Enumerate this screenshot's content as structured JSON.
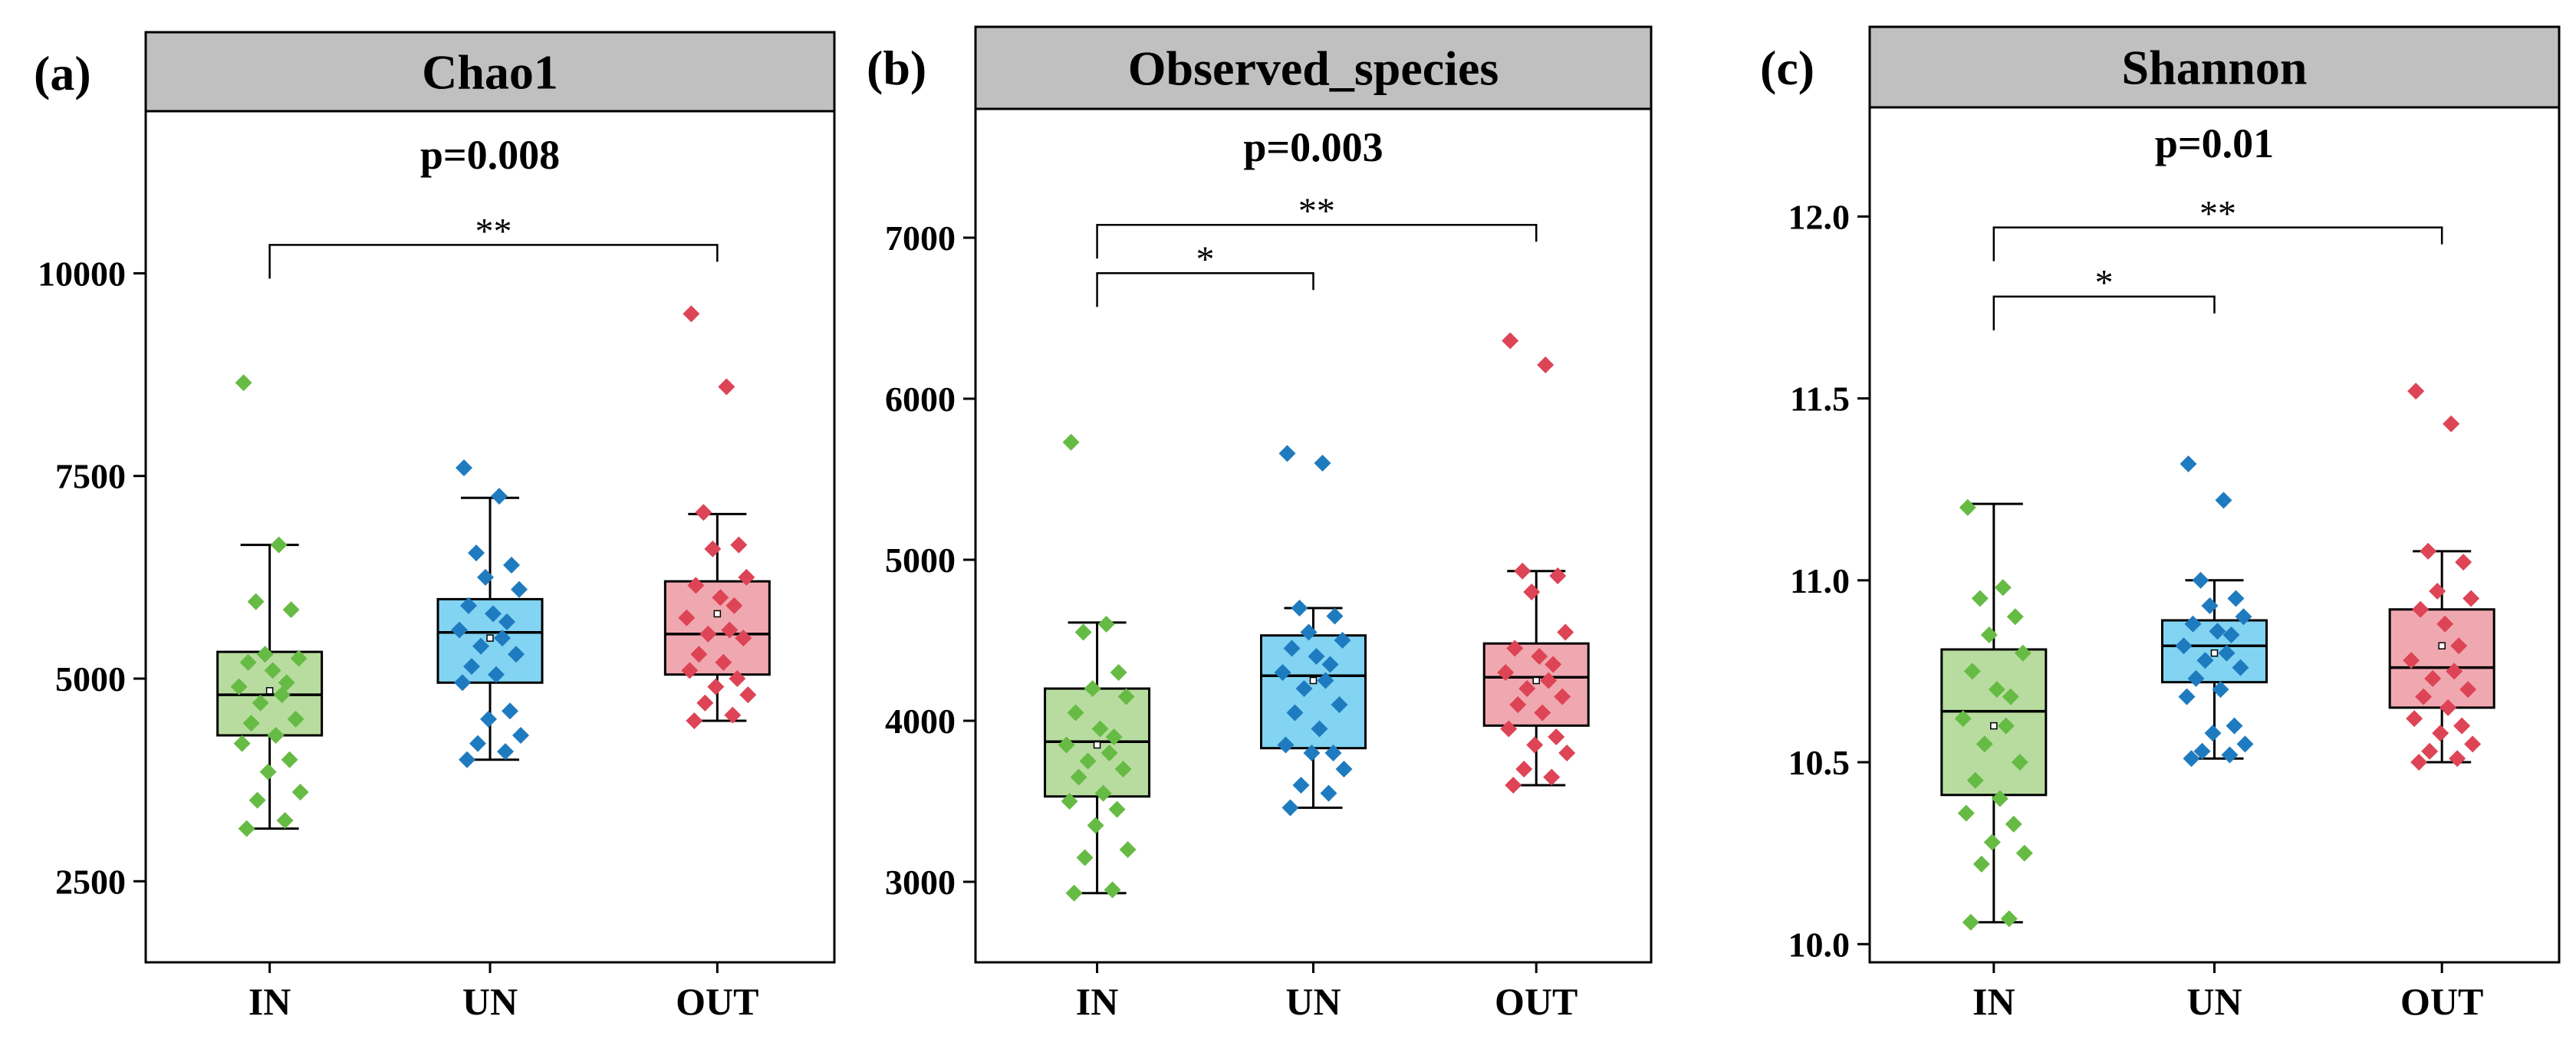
{
  "chart_data": [
    {
      "type": "box",
      "panel_label": "(a)",
      "title": "Chao1",
      "pvalue": "p=0.008",
      "ylim": [
        1500,
        12000
      ],
      "yticks": [
        2500,
        5000,
        7500,
        10000
      ],
      "yticklabels": [
        "2500",
        "5000",
        "7500",
        "10000"
      ],
      "categories": [
        "IN",
        "UN",
        "OUT"
      ],
      "groups": [
        {
          "name": "IN",
          "color": "#66bb44",
          "fill": "#b8dca0",
          "stats": {
            "min": 3150,
            "q1": 4300,
            "median": 4800,
            "q3": 5330,
            "max": 6650,
            "mean": 4850
          },
          "points": [
            8650,
            6650,
            5950,
            5850,
            5300,
            5250,
            5200,
            5100,
            4950,
            4900,
            4800,
            4700,
            4500,
            4450,
            4300,
            4200,
            4000,
            3850,
            3600,
            3500,
            3250,
            3150
          ]
        },
        {
          "name": "UN",
          "color": "#1f7bbf",
          "fill": "#82d4f2",
          "stats": {
            "min": 4000,
            "q1": 4950,
            "median": 5570,
            "q3": 5980,
            "max": 7230,
            "mean": 5500
          },
          "points": [
            7600,
            7250,
            6550,
            6400,
            6250,
            6100,
            5900,
            5800,
            5700,
            5600,
            5500,
            5400,
            5300,
            5150,
            5050,
            4950,
            4600,
            4500,
            4300,
            4200,
            4100,
            4000
          ]
        },
        {
          "name": "OUT",
          "color": "#dd4455",
          "fill": "#f0a8b0",
          "stats": {
            "min": 4480,
            "q1": 5050,
            "median": 5550,
            "q3": 6200,
            "max": 7030,
            "mean": 5800
          },
          "points": [
            9500,
            8600,
            7050,
            6650,
            6600,
            6250,
            6150,
            6000,
            5900,
            5750,
            5600,
            5550,
            5500,
            5300,
            5200,
            5100,
            5000,
            4900,
            4800,
            4700,
            4550,
            4480
          ]
        }
      ],
      "comparisons": [
        {
          "from": "IN",
          "to": "OUT",
          "label": "**",
          "y": 10350
        }
      ]
    },
    {
      "type": "box",
      "panel_label": "(b)",
      "title": "Observed_species",
      "pvalue": "p=0.003",
      "ylim": [
        2500,
        7800
      ],
      "yticks": [
        3000,
        4000,
        5000,
        6000,
        7000
      ],
      "yticklabels": [
        "3000",
        "4000",
        "5000",
        "6000",
        "7000"
      ],
      "categories": [
        "IN",
        "UN",
        "OUT"
      ],
      "groups": [
        {
          "name": "IN",
          "color": "#66bb44",
          "fill": "#b8dca0",
          "stats": {
            "min": 2930,
            "q1": 3530,
            "median": 3870,
            "q3": 4200,
            "max": 4610,
            "mean": 3850
          },
          "points": [
            5730,
            4600,
            4550,
            4300,
            4200,
            4150,
            4050,
            3950,
            3900,
            3850,
            3800,
            3750,
            3700,
            3650,
            3550,
            3500,
            3450,
            3350,
            3200,
            3150,
            2950,
            2930
          ]
        },
        {
          "name": "UN",
          "color": "#1f7bbf",
          "fill": "#82d4f2",
          "stats": {
            "min": 3460,
            "q1": 3830,
            "median": 4280,
            "q3": 4530,
            "max": 4700,
            "mean": 4250
          },
          "points": [
            5660,
            5600,
            4700,
            4650,
            4550,
            4500,
            4450,
            4400,
            4350,
            4300,
            4250,
            4200,
            4100,
            4050,
            3950,
            3850,
            3800,
            3800,
            3700,
            3600,
            3550,
            3460
          ]
        },
        {
          "name": "OUT",
          "color": "#dd4455",
          "fill": "#f0a8b0",
          "stats": {
            "min": 3600,
            "q1": 3970,
            "median": 4270,
            "q3": 4480,
            "max": 4930,
            "mean": 4250
          },
          "points": [
            6360,
            6210,
            4930,
            4900,
            4800,
            4550,
            4450,
            4400,
            4350,
            4300,
            4250,
            4200,
            4150,
            4100,
            4050,
            3950,
            3900,
            3850,
            3800,
            3700,
            3650,
            3600
          ]
        }
      ],
      "comparisons": [
        {
          "from": "IN",
          "to": "UN",
          "label": "*",
          "y": 6780
        },
        {
          "from": "IN",
          "to": "OUT",
          "label": "**",
          "y": 7080
        }
      ]
    },
    {
      "type": "box",
      "panel_label": "(c)",
      "title": "Shannon",
      "pvalue": "p=0.01",
      "ylim": [
        9.95,
        12.3
      ],
      "yticks": [
        10.0,
        10.5,
        11.0,
        11.5,
        12.0
      ],
      "yticklabels": [
        "10.0",
        "10.5",
        "11.0",
        "11.5",
        "12.0"
      ],
      "categories": [
        "IN",
        "UN",
        "OUT"
      ],
      "groups": [
        {
          "name": "IN",
          "color": "#66bb44",
          "fill": "#b8dca0",
          "stats": {
            "min": 10.06,
            "q1": 10.41,
            "median": 10.64,
            "q3": 10.81,
            "max": 11.21,
            "mean": 10.6
          },
          "points": [
            11.2,
            10.98,
            10.95,
            10.9,
            10.85,
            10.8,
            10.75,
            10.7,
            10.68,
            10.62,
            10.6,
            10.55,
            10.5,
            10.45,
            10.4,
            10.36,
            10.33,
            10.28,
            10.25,
            10.22,
            10.07,
            10.06
          ]
        },
        {
          "name": "UN",
          "color": "#1f7bbf",
          "fill": "#82d4f2",
          "stats": {
            "min": 10.51,
            "q1": 10.72,
            "median": 10.82,
            "q3": 10.89,
            "max": 11.0,
            "mean": 10.8
          },
          "points": [
            11.32,
            11.22,
            11.0,
            10.95,
            10.93,
            10.9,
            10.88,
            10.86,
            10.85,
            10.82,
            10.8,
            10.78,
            10.76,
            10.73,
            10.7,
            10.68,
            10.6,
            10.58,
            10.55,
            10.53,
            10.52,
            10.51
          ]
        },
        {
          "name": "OUT",
          "color": "#dd4455",
          "fill": "#f0a8b0",
          "stats": {
            "min": 10.5,
            "q1": 10.65,
            "median": 10.76,
            "q3": 10.92,
            "max": 11.08,
            "mean": 10.82
          },
          "points": [
            11.52,
            11.43,
            11.08,
            11.05,
            10.97,
            10.95,
            10.92,
            10.88,
            10.82,
            10.78,
            10.75,
            10.73,
            10.7,
            10.68,
            10.65,
            10.62,
            10.6,
            10.58,
            10.55,
            10.53,
            10.51,
            10.5
          ]
        }
      ],
      "comparisons": [
        {
          "from": "IN",
          "to": "UN",
          "label": "*",
          "y": 11.78
        },
        {
          "from": "IN",
          "to": "OUT",
          "label": "**",
          "y": 11.97
        }
      ]
    }
  ]
}
